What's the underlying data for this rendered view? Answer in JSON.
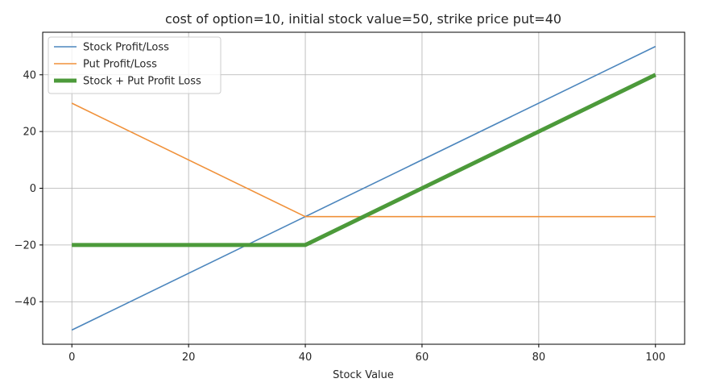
{
  "chart_data": {
    "type": "line",
    "title": "cost of option=10, initial stock value=50, strike price put=40",
    "xlabel": "Stock Value",
    "ylabel": "",
    "xlim": [
      -5,
      105
    ],
    "ylim": [
      -55,
      55
    ],
    "xticks": [
      0,
      20,
      40,
      60,
      80,
      100
    ],
    "yticks": [
      -40,
      -20,
      0,
      20,
      40
    ],
    "grid": true,
    "legend_position": "upper-left",
    "x": [
      0,
      40,
      100
    ],
    "series": [
      {
        "name": "Stock Profit/Loss",
        "color": "#4c86bd",
        "values": [
          -50,
          -10,
          50
        ],
        "linewidth": 1.6
      },
      {
        "name": "Put Profit/Loss",
        "color": "#f0913a",
        "values": [
          30,
          -10,
          -10
        ],
        "linewidth": 1.6
      },
      {
        "name": "Stock + Put Profit Loss",
        "color": "#4c9a3a",
        "values": [
          -20,
          -20,
          40
        ],
        "linewidth": 5
      }
    ]
  }
}
